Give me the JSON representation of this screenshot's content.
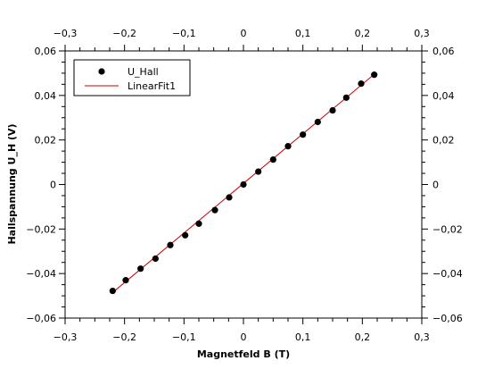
{
  "chart_data": {
    "type": "scatter",
    "xlabel": "Magnetfeld B (T)",
    "ylabel": "Hallspannung U_H (V)",
    "xlim": [
      -0.3,
      0.3
    ],
    "ylim": [
      -0.06,
      0.06
    ],
    "x_ticks": [
      -0.3,
      -0.2,
      -0.1,
      0,
      0.1,
      0.2,
      0.3
    ],
    "y_ticks": [
      -0.06,
      -0.04,
      -0.02,
      0,
      0.02,
      0.04,
      0.06
    ],
    "x_tick_labels": [
      "−0,3",
      "−0,2",
      "−0,1",
      "0",
      "0,1",
      "0,2",
      "0,3"
    ],
    "y_tick_labels": [
      "−0,06",
      "−0,04",
      "−0,02",
      "0",
      "0,02",
      "0,04",
      "0,06"
    ],
    "grid": false,
    "legend": {
      "placement": "top-left"
    },
    "series": [
      {
        "name": "U_Hall",
        "kind": "scatter",
        "color": "#000000",
        "points": [
          [
            -0.22,
            -0.0478
          ],
          [
            -0.198,
            -0.043
          ],
          [
            -0.173,
            -0.0378
          ],
          [
            -0.148,
            -0.0333
          ],
          [
            -0.123,
            -0.0272
          ],
          [
            -0.098,
            -0.0228
          ],
          [
            -0.075,
            -0.0176
          ],
          [
            -0.048,
            -0.0115
          ],
          [
            -0.024,
            -0.0058
          ],
          [
            0.0,
            0.0
          ],
          [
            0.025,
            0.0058
          ],
          [
            0.05,
            0.0112
          ],
          [
            0.075,
            0.0172
          ],
          [
            0.1,
            0.0224
          ],
          [
            0.125,
            0.0281
          ],
          [
            0.15,
            0.0333
          ],
          [
            0.173,
            0.039
          ],
          [
            0.198,
            0.0453
          ],
          [
            0.22,
            0.0493
          ]
        ]
      },
      {
        "name": "LinearFit1",
        "kind": "line",
        "color": "#cc0000",
        "points": [
          [
            -0.22,
            -0.0485
          ],
          [
            0.22,
            0.0495
          ]
        ]
      }
    ]
  }
}
